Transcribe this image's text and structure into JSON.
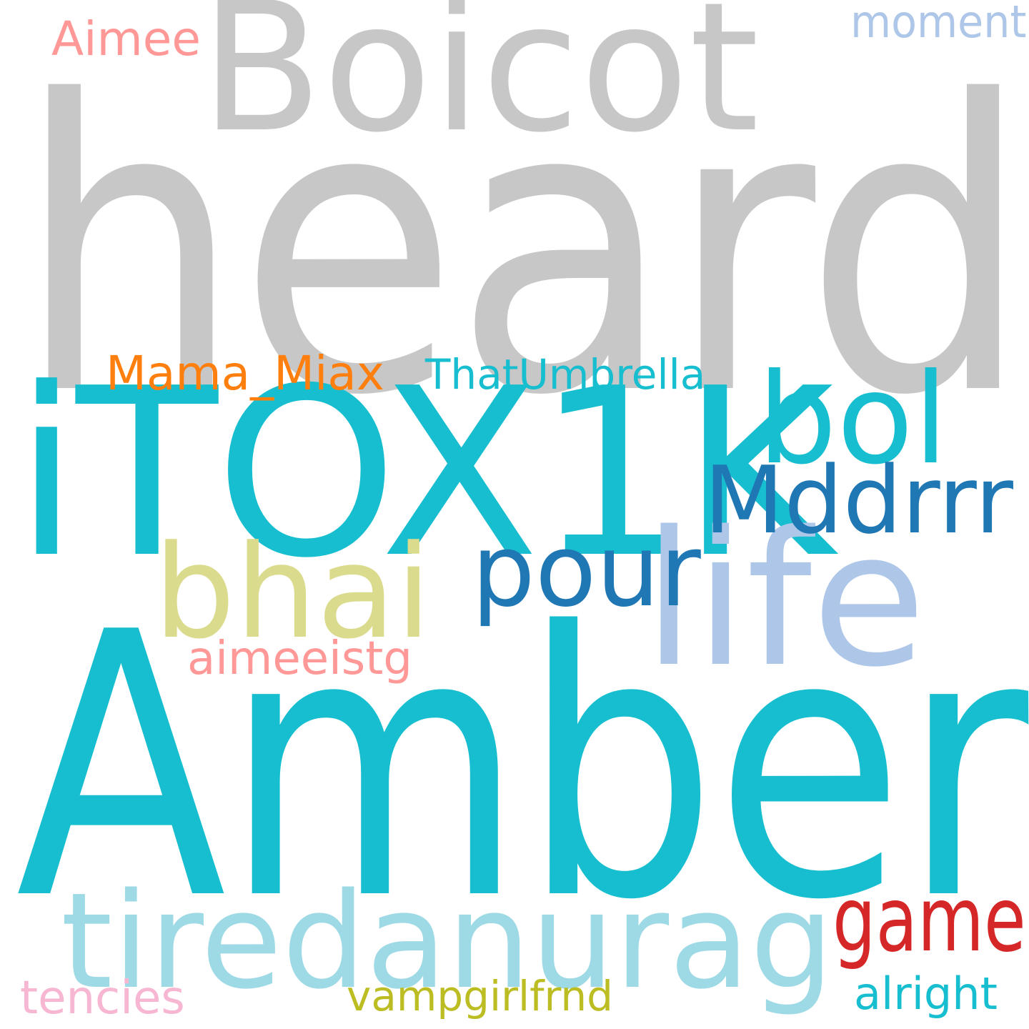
{
  "wordcloud": {
    "background": "#ffffff",
    "words": [
      {
        "text": "heard",
        "color": "#c7c7c7"
      },
      {
        "text": "Boicot",
        "color": "#c7c7c7"
      },
      {
        "text": "Amber",
        "color": "#17becf"
      },
      {
        "text": "iTOX1K",
        "color": "#17becf"
      },
      {
        "text": "life",
        "color": "#aec7e8"
      },
      {
        "text": "bhai",
        "color": "#dbdb8d"
      },
      {
        "text": "bol",
        "color": "#17becf"
      },
      {
        "text": "Mddrrr",
        "color": "#1f77b4"
      },
      {
        "text": "pour",
        "color": "#1f77b4"
      },
      {
        "text": "tiredanurag",
        "color": "#9edae5"
      },
      {
        "text": "game",
        "color": "#d62728"
      },
      {
        "text": "Mama_Miax",
        "color": "#ff7f0e"
      },
      {
        "text": "ThatUmbrella",
        "color": "#17becf"
      },
      {
        "text": "Aimee",
        "color": "#ff9896"
      },
      {
        "text": "moment",
        "color": "#aec7e8"
      },
      {
        "text": "aimeeistg",
        "color": "#ff9896"
      },
      {
        "text": "tencies",
        "color": "#f7b6d2"
      },
      {
        "text": "vampgirlfrnd",
        "color": "#bcbd22"
      },
      {
        "text": "alright",
        "color": "#17becf"
      }
    ]
  }
}
